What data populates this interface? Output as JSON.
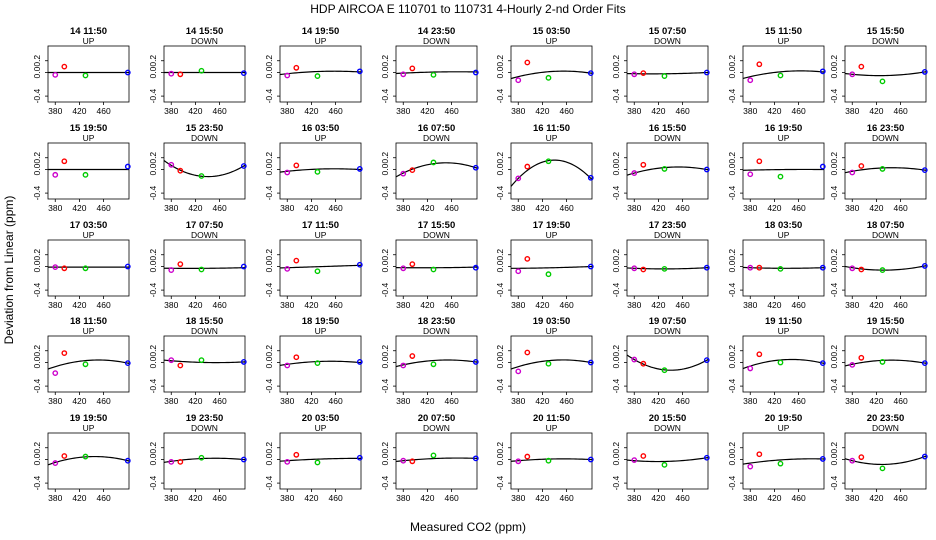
{
  "chart_data": {
    "type": "scatter",
    "title": "HDP   AIRCOA E   110701 to 110731   4-Hourly 2-nd Order Fits",
    "xlabel": "Measured CO2 (ppm)",
    "ylabel": "Deviation from Linear (ppm)",
    "xlim": [
      368,
      502
    ],
    "ylim": [
      -0.5,
      0.45
    ],
    "x_ticks": [
      "380",
      "420",
      "460"
    ],
    "y_ticks": [
      "-0.4",
      "0.0",
      "0.2"
    ],
    "grid": false,
    "point_x": [
      380,
      395,
      430,
      500
    ],
    "point_colors": [
      "#cc00cc",
      "#ff0000",
      "#00cc00",
      "#0000ff"
    ],
    "panels": [
      {
        "label": "14 11:50",
        "direction": "UP",
        "points": [
          -0.04,
          0.1,
          -0.05,
          0.0
        ],
        "curve": [
          0.0,
          0.0,
          0.0
        ]
      },
      {
        "label": "14 15:50",
        "direction": "DOWN",
        "points": [
          -0.02,
          -0.03,
          0.03,
          -0.01
        ],
        "curve": [
          0.0,
          0.0,
          0.0
        ]
      },
      {
        "label": "14 19:50",
        "direction": "UP",
        "points": [
          -0.05,
          0.08,
          -0.06,
          0.02
        ],
        "curve": [
          -0.02,
          0.02,
          0.01
        ]
      },
      {
        "label": "14 23:50",
        "direction": "DOWN",
        "points": [
          -0.03,
          0.07,
          -0.04,
          0.0
        ],
        "curve": [
          -0.01,
          0.01,
          0.01
        ]
      },
      {
        "label": "15 03:50",
        "direction": "UP",
        "points": [
          -0.13,
          0.17,
          -0.09,
          -0.01
        ],
        "curve": [
          -0.07,
          0.02,
          -0.01
        ]
      },
      {
        "label": "15 07:50",
        "direction": "DOWN",
        "points": [
          -0.03,
          -0.01,
          -0.06,
          0.0
        ],
        "curve": [
          -0.02,
          -0.02,
          0.0
        ]
      },
      {
        "label": "15 11:50",
        "direction": "UP",
        "points": [
          -0.13,
          0.14,
          -0.05,
          0.02
        ],
        "curve": [
          -0.07,
          0.02,
          0.01
        ]
      },
      {
        "label": "15 15:50",
        "direction": "DOWN",
        "points": [
          -0.03,
          0.1,
          -0.15,
          0.01
        ],
        "curve": [
          -0.03,
          -0.05,
          0.01
        ]
      },
      {
        "label": "15 19:50",
        "direction": "UP",
        "points": [
          -0.09,
          0.14,
          -0.09,
          0.05
        ],
        "curve": [
          0.0,
          0.0,
          0.0
        ]
      },
      {
        "label": "15 23:50",
        "direction": "DOWN",
        "points": [
          0.08,
          -0.02,
          -0.11,
          0.06
        ],
        "curve": [
          0.07,
          -0.12,
          0.06
        ]
      },
      {
        "label": "16 03:50",
        "direction": "UP",
        "points": [
          -0.05,
          0.07,
          -0.04,
          0.01
        ],
        "curve": [
          -0.03,
          0.01,
          0.0
        ]
      },
      {
        "label": "16 07:50",
        "direction": "DOWN",
        "points": [
          -0.07,
          -0.01,
          0.12,
          0.03
        ],
        "curve": [
          -0.06,
          0.11,
          0.03
        ]
      },
      {
        "label": "16 11:50",
        "direction": "UP",
        "points": [
          -0.15,
          0.05,
          0.14,
          -0.14
        ],
        "curve": [
          -0.15,
          0.16,
          -0.15
        ]
      },
      {
        "label": "16 15:50",
        "direction": "DOWN",
        "points": [
          -0.06,
          0.08,
          0.01,
          0.0
        ],
        "curve": [
          -0.06,
          0.04,
          0.0
        ]
      },
      {
        "label": "16 19:50",
        "direction": "UP",
        "points": [
          -0.08,
          0.14,
          -0.12,
          0.05
        ],
        "curve": [
          -0.01,
          0.0,
          0.0
        ]
      },
      {
        "label": "16 23:50",
        "direction": "DOWN",
        "points": [
          -0.05,
          0.06,
          0.01,
          -0.01
        ],
        "curve": [
          -0.03,
          0.03,
          -0.01
        ]
      },
      {
        "label": "17 03:50",
        "direction": "UP",
        "points": [
          -0.01,
          -0.03,
          -0.03,
          0.0
        ],
        "curve": [
          -0.01,
          -0.01,
          -0.01
        ]
      },
      {
        "label": "17 07:50",
        "direction": "DOWN",
        "points": [
          -0.06,
          0.04,
          -0.05,
          0.0
        ],
        "curve": [
          -0.03,
          -0.03,
          -0.02
        ]
      },
      {
        "label": "17 11:50",
        "direction": "UP",
        "points": [
          -0.04,
          0.1,
          -0.08,
          0.03
        ],
        "curve": [
          -0.02,
          0.0,
          0.02
        ]
      },
      {
        "label": "17 15:50",
        "direction": "DOWN",
        "points": [
          -0.03,
          0.04,
          -0.05,
          -0.02
        ],
        "curve": [
          -0.02,
          -0.02,
          -0.01
        ]
      },
      {
        "label": "17 19:50",
        "direction": "UP",
        "points": [
          -0.08,
          0.13,
          -0.13,
          0.0
        ],
        "curve": [
          -0.03,
          -0.02,
          0.0
        ]
      },
      {
        "label": "17 23:50",
        "direction": "DOWN",
        "points": [
          -0.03,
          -0.05,
          -0.04,
          -0.02
        ],
        "curve": [
          -0.03,
          -0.04,
          -0.02
        ]
      },
      {
        "label": "18 03:50",
        "direction": "UP",
        "points": [
          -0.02,
          -0.02,
          -0.04,
          -0.02
        ],
        "curve": [
          -0.02,
          -0.03,
          -0.02
        ]
      },
      {
        "label": "18 07:50",
        "direction": "DOWN",
        "points": [
          -0.03,
          -0.05,
          -0.06,
          0.01
        ],
        "curve": [
          -0.02,
          -0.06,
          0.01
        ]
      },
      {
        "label": "18 11:50",
        "direction": "UP",
        "points": [
          -0.18,
          0.16,
          -0.03,
          -0.01
        ],
        "curve": [
          -0.07,
          0.04,
          -0.01
        ]
      },
      {
        "label": "18 15:50",
        "direction": "DOWN",
        "points": [
          0.04,
          -0.05,
          0.04,
          0.01
        ],
        "curve": [
          0.03,
          0.0,
          0.01
        ]
      },
      {
        "label": "18 19:50",
        "direction": "UP",
        "points": [
          -0.05,
          0.09,
          -0.01,
          0.01
        ],
        "curve": [
          -0.03,
          0.02,
          0.0
        ]
      },
      {
        "label": "18 23:50",
        "direction": "DOWN",
        "points": [
          -0.05,
          0.11,
          -0.03,
          0.01
        ],
        "curve": [
          -0.04,
          0.04,
          0.01
        ]
      },
      {
        "label": "19 03:50",
        "direction": "UP",
        "points": [
          -0.15,
          0.17,
          -0.02,
          0.0
        ],
        "curve": [
          -0.07,
          0.04,
          0.0
        ]
      },
      {
        "label": "19 07:50",
        "direction": "DOWN",
        "points": [
          0.05,
          -0.02,
          -0.13,
          0.04
        ],
        "curve": [
          0.05,
          -0.13,
          0.04
        ]
      },
      {
        "label": "19 11:50",
        "direction": "UP",
        "points": [
          -0.1,
          0.14,
          0.0,
          -0.01
        ],
        "curve": [
          -0.06,
          0.05,
          -0.01
        ]
      },
      {
        "label": "19 15:50",
        "direction": "DOWN",
        "points": [
          -0.04,
          0.08,
          0.01,
          -0.01
        ],
        "curve": [
          -0.03,
          0.04,
          -0.01
        ]
      },
      {
        "label": "19 19:50",
        "direction": "UP",
        "points": [
          -0.06,
          0.06,
          0.05,
          -0.02
        ],
        "curve": [
          -0.05,
          0.05,
          -0.02
        ]
      },
      {
        "label": "19 23:50",
        "direction": "DOWN",
        "points": [
          -0.04,
          -0.04,
          0.03,
          0.0
        ],
        "curve": [
          -0.03,
          0.02,
          0.0
        ]
      },
      {
        "label": "20 03:50",
        "direction": "UP",
        "points": [
          -0.04,
          0.08,
          -0.05,
          0.03
        ],
        "curve": [
          -0.02,
          0.01,
          0.02
        ]
      },
      {
        "label": "20 07:50",
        "direction": "DOWN",
        "points": [
          -0.02,
          -0.03,
          0.07,
          0.02
        ],
        "curve": [
          -0.02,
          0.02,
          0.02
        ]
      },
      {
        "label": "20 11:50",
        "direction": "UP",
        "points": [
          -0.03,
          0.05,
          -0.02,
          0.0
        ],
        "curve": [
          -0.02,
          0.01,
          0.0
        ]
      },
      {
        "label": "20 15:50",
        "direction": "DOWN",
        "points": [
          -0.01,
          0.06,
          -0.09,
          0.03
        ],
        "curve": [
          -0.02,
          -0.03,
          0.03
        ]
      },
      {
        "label": "20 19:50",
        "direction": "UP",
        "points": [
          -0.12,
          0.09,
          -0.07,
          0.01
        ],
        "curve": [
          -0.06,
          0.0,
          0.01
        ]
      },
      {
        "label": "20 23:50",
        "direction": "DOWN",
        "points": [
          -0.02,
          0.04,
          -0.15,
          0.05
        ],
        "curve": [
          -0.02,
          -0.08,
          0.05
        ]
      }
    ]
  }
}
